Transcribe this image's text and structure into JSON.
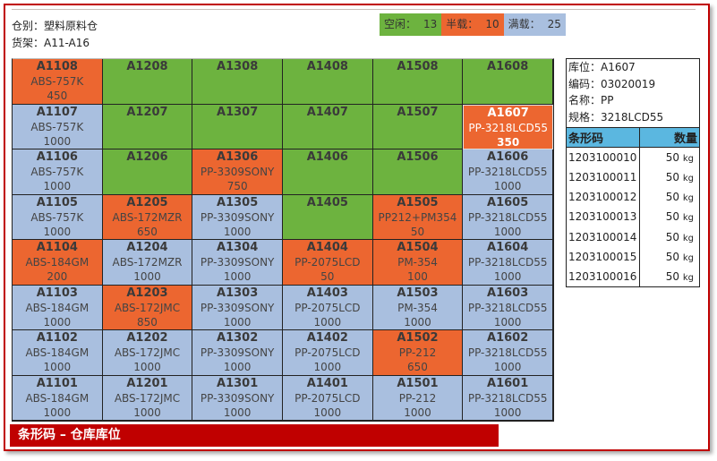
{
  "header": {
    "warehouse": "仓别：塑料原料仓",
    "shelf": "货架：A11-A16"
  },
  "legend": [
    {
      "label": "空闲：",
      "count": "13",
      "color": "#6db33f"
    },
    {
      "label": "半载：",
      "count": "10",
      "color": "#ec6630"
    },
    {
      "label": "满载：",
      "count": "25",
      "color": "#a9bfdf"
    }
  ],
  "status_colors": {
    "G": "#6db33f",
    "O": "#ec6630",
    "B": "#a9bfdf"
  },
  "selected": "A1607",
  "grid": [
    [
      [
        "A1108",
        "O",
        "ABS-757K",
        "450"
      ],
      [
        "A1208",
        "G"
      ],
      [
        "A1308",
        "G"
      ],
      [
        "A1408",
        "G"
      ],
      [
        "A1508",
        "G"
      ],
      [
        "A1608",
        "G"
      ]
    ],
    [
      [
        "A1107",
        "B",
        "ABS-757K",
        "1000"
      ],
      [
        "A1207",
        "G"
      ],
      [
        "A1307",
        "G"
      ],
      [
        "A1407",
        "G"
      ],
      [
        "A1507",
        "G"
      ],
      [
        "A1607",
        "O",
        "PP-3218LCD55",
        "350"
      ]
    ],
    [
      [
        "A1106",
        "B",
        "ABS-757K",
        "1000"
      ],
      [
        "A1206",
        "G"
      ],
      [
        "A1306",
        "O",
        "PP-3309SONY",
        "750"
      ],
      [
        "A1406",
        "G"
      ],
      [
        "A1506",
        "G"
      ],
      [
        "A1606",
        "B",
        "PP-3218LCD55",
        "1000"
      ]
    ],
    [
      [
        "A1105",
        "B",
        "ABS-757K",
        "1000"
      ],
      [
        "A1205",
        "O",
        "ABS-172MZR",
        "650"
      ],
      [
        "A1305",
        "B",
        "PP-3309SONY",
        "1000"
      ],
      [
        "A1405",
        "G"
      ],
      [
        "A1505",
        "O",
        "PP212+PM354",
        "50"
      ],
      [
        "A1605",
        "B",
        "PP-3218LCD55",
        "1000"
      ]
    ],
    [
      [
        "A1104",
        "O",
        "ABS-184GM",
        "200"
      ],
      [
        "A1204",
        "B",
        "ABS-172MZR",
        "1000"
      ],
      [
        "A1304",
        "B",
        "PP-3309SONY",
        "1000"
      ],
      [
        "A1404",
        "O",
        "PP-2075LCD",
        "50"
      ],
      [
        "A1504",
        "O",
        "PM-354",
        "100"
      ],
      [
        "A1604",
        "B",
        "PP-3218LCD55",
        "1000"
      ]
    ],
    [
      [
        "A1103",
        "B",
        "ABS-184GM",
        "1000"
      ],
      [
        "A1203",
        "O",
        "ABS-172JMC",
        "850"
      ],
      [
        "A1303",
        "B",
        "PP-3309SONY",
        "1000"
      ],
      [
        "A1403",
        "B",
        "PP-2075LCD",
        "1000"
      ],
      [
        "A1503",
        "B",
        "PM-354",
        "1000"
      ],
      [
        "A1603",
        "B",
        "PP-3218LCD55",
        "1000"
      ]
    ],
    [
      [
        "A1102",
        "B",
        "ABS-184GM",
        "1000"
      ],
      [
        "A1202",
        "B",
        "ABS-172JMC",
        "1000"
      ],
      [
        "A1302",
        "B",
        "PP-3309SONY",
        "1000"
      ],
      [
        "A1402",
        "B",
        "PP-2075LCD",
        "1000"
      ],
      [
        "A1502",
        "O",
        "PP-212",
        "650"
      ],
      [
        "A1602",
        "B",
        "PP-3218LCD55",
        "1000"
      ]
    ],
    [
      [
        "A1101",
        "B",
        "ABS-184GM",
        "1000"
      ],
      [
        "A1201",
        "B",
        "ABS-172JMC",
        "1000"
      ],
      [
        "A1301",
        "B",
        "PP-3309SONY",
        "1000"
      ],
      [
        "A1401",
        "B",
        "PP-2075LCD",
        "1000"
      ],
      [
        "A1501",
        "B",
        "PP-212",
        "1000"
      ],
      [
        "A1601",
        "B",
        "PP-3218LCD55",
        "1000"
      ]
    ]
  ],
  "detail": {
    "location": "库位：A1607",
    "code": "编码：03020019",
    "name": "名称：PP",
    "spec": "规格：3218LCD55",
    "col_barcode": "条形码",
    "col_qty": "数量",
    "unit": "kg",
    "rows": [
      [
        "1203100010",
        "50"
      ],
      [
        "1203100011",
        "50"
      ],
      [
        "1203100012",
        "50"
      ],
      [
        "1203100013",
        "50"
      ],
      [
        "1203100014",
        "50"
      ],
      [
        "1203100015",
        "50"
      ],
      [
        "1203100016",
        "50"
      ]
    ]
  },
  "banner": "条形码 – 仓库库位"
}
